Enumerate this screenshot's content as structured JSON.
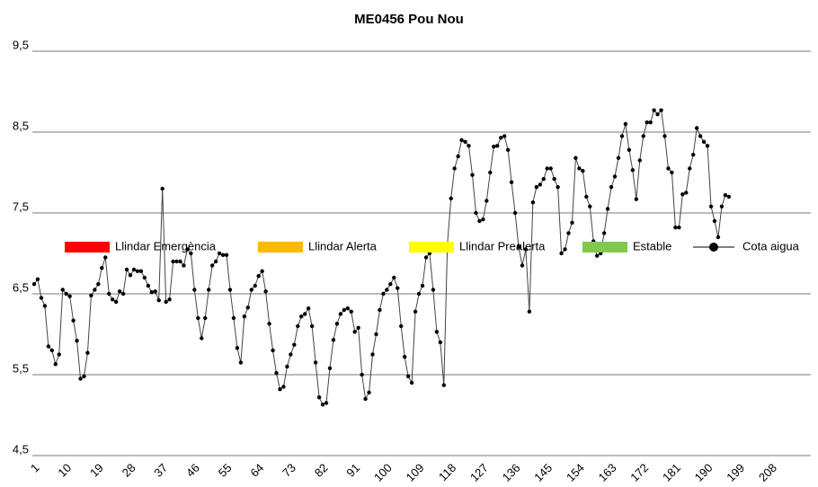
{
  "chart_data": {
    "type": "line",
    "title": "ME0456 Pou Nou",
    "thresholds": [
      {
        "name": "Llindar Emergència",
        "color": "#ff0000"
      },
      {
        "name": "Llindar Alerta",
        "color": "#ffb900"
      },
      {
        "name": "Llindar Prealerta",
        "color": "#ffff00"
      },
      {
        "name": "Estable",
        "color": "#80c84e"
      }
    ],
    "series": [
      {
        "name": "Cota aigua",
        "color": "#000000",
        "x": [
          1,
          2,
          3,
          4,
          5,
          6,
          7,
          8,
          9,
          10,
          11,
          12,
          13,
          14,
          15,
          16,
          17,
          18,
          19,
          20,
          21,
          22,
          23,
          24,
          25,
          26,
          27,
          28,
          29,
          30,
          31,
          32,
          33,
          34,
          35,
          36,
          37,
          38,
          39,
          40,
          41,
          42,
          43,
          44,
          45,
          46,
          47,
          48,
          49,
          50,
          51,
          52,
          53,
          54,
          55,
          56,
          57,
          58,
          59,
          60,
          61,
          62,
          63,
          64,
          65,
          66,
          67,
          68,
          69,
          70,
          71,
          72,
          73,
          74,
          75,
          76,
          77,
          78,
          79,
          80,
          81,
          82,
          83,
          84,
          85,
          86,
          87,
          88,
          89,
          90,
          91,
          92,
          93,
          94,
          95,
          96,
          97,
          98,
          99,
          100,
          101,
          102,
          103,
          104,
          105,
          106,
          107,
          108,
          109,
          110,
          111,
          112,
          113,
          114,
          115,
          116,
          117,
          118,
          119,
          120,
          121,
          122,
          123,
          124,
          125,
          126,
          127,
          128,
          129,
          130,
          131,
          132,
          133,
          134,
          135,
          136,
          137,
          138,
          139,
          140,
          141,
          142,
          143,
          144,
          145,
          146,
          147,
          148,
          149,
          150,
          151,
          152,
          153,
          154,
          155,
          156,
          157,
          158,
          159,
          160,
          161,
          162,
          163,
          164,
          165,
          166,
          167,
          168,
          169,
          170,
          171,
          172,
          173,
          174,
          175,
          176,
          177,
          178,
          179,
          180,
          181,
          182,
          183,
          184,
          185,
          186,
          187,
          188,
          189,
          190,
          191,
          192,
          193,
          194,
          195,
          196
        ],
        "values": [
          6.62,
          6.68,
          6.45,
          6.35,
          5.85,
          5.8,
          5.63,
          5.75,
          6.55,
          6.5,
          6.47,
          6.17,
          5.92,
          5.45,
          5.48,
          5.77,
          6.48,
          6.55,
          6.62,
          6.82,
          6.95,
          6.5,
          6.43,
          6.4,
          6.53,
          6.5,
          6.8,
          6.73,
          6.8,
          6.78,
          6.78,
          6.7,
          6.6,
          6.52,
          6.53,
          6.42,
          7.8,
          6.4,
          6.43,
          6.9,
          6.9,
          6.9,
          6.85,
          7.05,
          7.0,
          6.55,
          6.2,
          5.95,
          6.2,
          6.55,
          6.85,
          6.9,
          7.0,
          6.98,
          6.98,
          6.55,
          6.2,
          5.83,
          5.65,
          6.22,
          6.33,
          6.55,
          6.6,
          6.72,
          6.78,
          6.53,
          6.13,
          5.8,
          5.52,
          5.32,
          5.35,
          5.6,
          5.75,
          5.87,
          6.1,
          6.22,
          6.25,
          6.32,
          6.1,
          5.65,
          5.22,
          5.13,
          5.15,
          5.58,
          5.93,
          6.13,
          6.25,
          6.3,
          6.32,
          6.28,
          6.03,
          6.08,
          5.5,
          5.2,
          5.28,
          5.75,
          6.0,
          6.3,
          6.5,
          6.55,
          6.62,
          6.7,
          6.57,
          6.1,
          5.72,
          5.48,
          5.4,
          6.28,
          6.5,
          6.6,
          6.95,
          7.0,
          6.55,
          6.03,
          5.9,
          5.37,
          7.12,
          7.68,
          8.05,
          8.2,
          8.4,
          8.38,
          8.33,
          7.97,
          7.5,
          7.4,
          7.42,
          7.65,
          8.0,
          8.32,
          8.33,
          8.43,
          8.45,
          8.28,
          7.88,
          7.5,
          7.08,
          6.85,
          7.05,
          6.28,
          7.63,
          7.82,
          7.85,
          7.92,
          8.05,
          8.05,
          7.92,
          7.82,
          7.0,
          7.05,
          7.25,
          7.38,
          8.18,
          8.05,
          8.02,
          7.7,
          7.58,
          7.15,
          6.97,
          7.0,
          7.25,
          7.55,
          7.82,
          7.95,
          8.18,
          8.45,
          8.6,
          8.28,
          8.03,
          7.67,
          8.15,
          8.45,
          8.62,
          8.62,
          8.77,
          8.72,
          8.77,
          8.45,
          8.05,
          8.0,
          7.32,
          7.32,
          7.73,
          7.75,
          8.05,
          8.22,
          8.55,
          8.45,
          8.38,
          8.33,
          7.58,
          7.4,
          7.2,
          7.58,
          7.72,
          7.7
        ]
      }
    ],
    "xlim": [
      1,
      219
    ],
    "xticks": [
      1,
      10,
      19,
      28,
      37,
      46,
      55,
      64,
      73,
      82,
      91,
      100,
      109,
      118,
      127,
      136,
      145,
      154,
      163,
      172,
      181,
      190,
      199,
      208
    ],
    "ylim": [
      4.5,
      9.5
    ],
    "yticks": [
      {
        "value": 4.5,
        "label": "4,5"
      },
      {
        "value": 5.5,
        "label": "5,5"
      },
      {
        "value": 6.5,
        "label": "6,5"
      },
      {
        "value": 7.5,
        "label": "7,5"
      },
      {
        "value": 8.5,
        "label": "8,5"
      },
      {
        "value": 9.5,
        "label": "9,5"
      }
    ],
    "grid": true
  }
}
